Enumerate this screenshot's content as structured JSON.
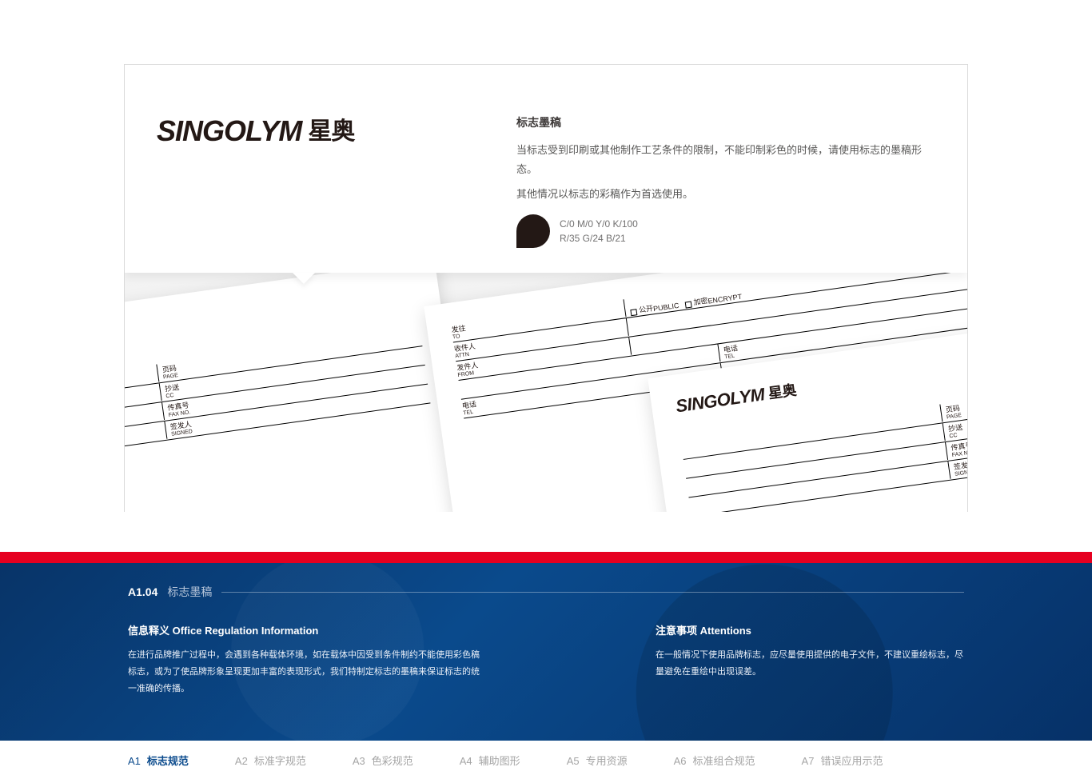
{
  "brand": {
    "latin": "SINGOLYM",
    "cn": "星奥"
  },
  "panel": {
    "title": "标志墨稿",
    "p1": "当标志受到印刷或其他制作工艺条件的限制，不能印制彩色的时候，请使用标志的墨稿形态。",
    "p2": "其他情况以标志的彩稿作为首选使用。",
    "swatch_cmyk": "C/0 M/0 Y/0 K/100",
    "swatch_rgb": "R/35 G/24 B/21",
    "swatch_color": "#231815"
  },
  "form": {
    "to_cn": "发往",
    "to_en": "TO",
    "attn_cn": "收件人",
    "attn_en": "ATTN",
    "from_cn": "发件人",
    "from_en": "FROM",
    "public_cn": "公开",
    "public_en": "PUBLIC",
    "encrypt_cn": "加密",
    "encrypt_en": "ENCRYPT",
    "tel_cn": "电话",
    "tel_en": "TEL",
    "page_cn": "页码",
    "page_en": "PAGE",
    "cc_cn": "抄送",
    "cc_en": "CC",
    "fax_cn": "传真号",
    "fax_en": "FAX NO.",
    "signed_cn": "签发人",
    "signed_en": "SIGNED"
  },
  "footer": {
    "code": "A1.04",
    "name": "标志墨稿",
    "info_title": "信息释义 Office Regulation Information",
    "info_body": "在进行品牌推广过程中，会遇到各种载体环境，如在载体中因受到条件制约不能使用彩色稿标志，或为了使品牌形象呈现更加丰富的表现形式，我们特制定标志的墨稿来保证标志的统一准确的传播。",
    "attn_title": "注意事项 Attentions",
    "attn_body": "在一般情况下使用品牌标志，应尽量使用提供的电子文件，不建议重绘标志，尽量避免在重绘中出现误差。"
  },
  "tabs": [
    {
      "code": "A1",
      "label": "标志规范",
      "active": true
    },
    {
      "code": "A2",
      "label": "标准字规范",
      "active": false
    },
    {
      "code": "A3",
      "label": "色彩规范",
      "active": false
    },
    {
      "code": "A4",
      "label": "辅助图形",
      "active": false
    },
    {
      "code": "A5",
      "label": "专用资源",
      "active": false
    },
    {
      "code": "A6",
      "label": "标准组合规范",
      "active": false
    },
    {
      "code": "A7",
      "label": "错误应用示范",
      "active": false
    }
  ],
  "colors": {
    "navy": "#0a4a8c",
    "red": "#e60020",
    "ink": "#231815"
  }
}
